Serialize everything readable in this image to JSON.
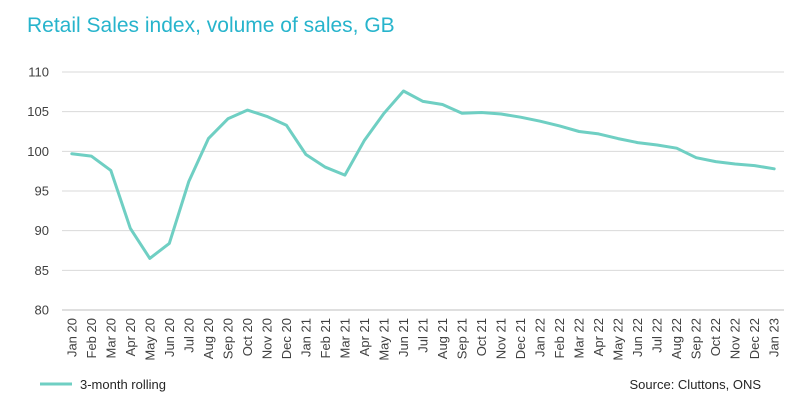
{
  "colors": {
    "series": "#6fcfc3",
    "title": "#27b4cc",
    "grid": "#d9d9d9",
    "axis": "#bfbfbf"
  },
  "chart_data": {
    "type": "line",
    "title": "Retail Sales index, volume of sales, GB",
    "xlabel": "",
    "ylabel": "",
    "ylim": [
      80,
      110
    ],
    "yticks": [
      80,
      85,
      90,
      95,
      100,
      105,
      110
    ],
    "grid": true,
    "legend": "bottom-left",
    "source": "Source: Cluttons, ONS",
    "categories": [
      "Jan 20",
      "Feb 20",
      "Mar 20",
      "Apr 20",
      "May 20",
      "Jun 20",
      "Jul 20",
      "Aug 20",
      "Sep 20",
      "Oct 20",
      "Nov 20",
      "Dec 20",
      "Jan 21",
      "Feb 21",
      "Mar 21",
      "Apr 21",
      "May 21",
      "Jun 21",
      "Jul 21",
      "Aug 21",
      "Sep 21",
      "Oct 21",
      "Nov 21",
      "Dec 21",
      "Jan 22",
      "Feb 22",
      "Mar 22",
      "Apr 22",
      "May 22",
      "Jun 22",
      "Jul 22",
      "Aug 22",
      "Sep 22",
      "Oct 22",
      "Nov 22",
      "Dec 22",
      "Jan 23"
    ],
    "series": [
      {
        "name": "3-month rolling",
        "values": [
          99.7,
          99.4,
          97.6,
          90.3,
          86.5,
          88.4,
          96.2,
          101.6,
          104.1,
          105.2,
          104.4,
          103.3,
          99.6,
          98.0,
          97.0,
          101.4,
          104.8,
          107.6,
          106.3,
          105.9,
          104.8,
          104.9,
          104.7,
          104.3,
          103.8,
          103.2,
          102.5,
          102.2,
          101.6,
          101.1,
          100.8,
          100.4,
          99.2,
          98.7,
          98.4,
          98.2,
          97.8
        ]
      }
    ]
  }
}
